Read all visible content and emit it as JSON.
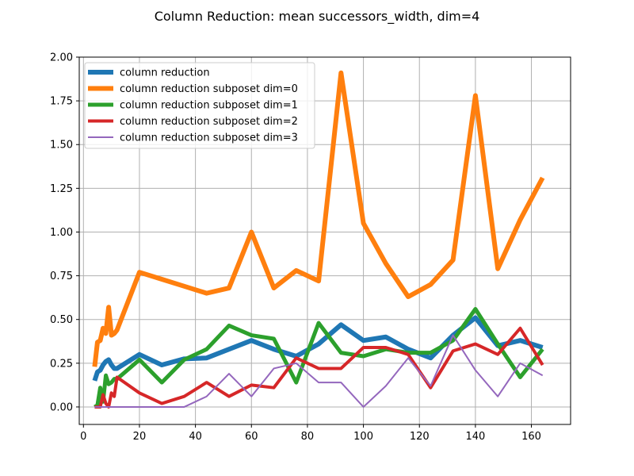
{
  "chart_data": {
    "type": "line",
    "title": "Column Reduction: mean successors_width, dim=4",
    "xlabel": "",
    "ylabel": "",
    "xlim": [
      -1.5,
      174
    ],
    "ylim": [
      -0.1,
      2.0
    ],
    "xticks": [
      0,
      20,
      40,
      60,
      80,
      100,
      120,
      140,
      160
    ],
    "yticks": [
      0.0,
      0.25,
      0.5,
      0.75,
      1.0,
      1.25,
      1.5,
      1.75,
      2.0
    ],
    "xtick_labels": [
      "0",
      "20",
      "40",
      "60",
      "80",
      "100",
      "120",
      "140",
      "160"
    ],
    "ytick_labels": [
      "0.00",
      "0.25",
      "0.50",
      "0.75",
      "1.00",
      "1.25",
      "1.50",
      "1.75",
      "2.00"
    ],
    "grid": true,
    "legend": "top-left",
    "series": [
      {
        "name": "column reduction",
        "color": "#1f77b4",
        "linewidth": 6,
        "x": [
          4,
          5,
          6,
          7,
          8,
          9,
          10,
          11,
          12,
          20,
          28,
          36,
          44,
          52,
          60,
          68,
          76,
          84,
          92,
          100,
          108,
          116,
          124,
          132,
          140,
          148,
          156,
          164
        ],
        "y": [
          0.15,
          0.2,
          0.21,
          0.24,
          0.26,
          0.27,
          0.24,
          0.22,
          0.22,
          0.3,
          0.24,
          0.275,
          0.28,
          0.33,
          0.38,
          0.33,
          0.29,
          0.36,
          0.47,
          0.38,
          0.4,
          0.33,
          0.28,
          0.41,
          0.51,
          0.35,
          0.38,
          0.34
        ]
      },
      {
        "name": "column reduction subposet dim=0",
        "color": "#ff7f0e",
        "linewidth": 6,
        "x": [
          4,
          5,
          6,
          7,
          8,
          9,
          10,
          11,
          12,
          20,
          28,
          36,
          44,
          52,
          60,
          68,
          76,
          84,
          92,
          100,
          108,
          116,
          124,
          132,
          140,
          148,
          156,
          164
        ],
        "y": [
          0.23,
          0.37,
          0.38,
          0.45,
          0.42,
          0.57,
          0.41,
          0.42,
          0.44,
          0.77,
          0.73,
          0.69,
          0.65,
          0.68,
          1.0,
          0.68,
          0.78,
          0.72,
          1.91,
          1.05,
          0.82,
          0.63,
          0.7,
          0.84,
          1.78,
          0.79,
          1.07,
          1.31
        ]
      },
      {
        "name": "column reduction subposet dim=1",
        "color": "#2ca02c",
        "linewidth": 5,
        "x": [
          4,
          5,
          6,
          7,
          8,
          9,
          10,
          11,
          12,
          20,
          28,
          36,
          44,
          52,
          60,
          68,
          76,
          84,
          92,
          100,
          108,
          116,
          124,
          132,
          140,
          148,
          156,
          164
        ],
        "y": [
          0.0,
          0.01,
          0.11,
          0.03,
          0.18,
          0.13,
          0.14,
          0.16,
          0.16,
          0.27,
          0.14,
          0.27,
          0.33,
          0.465,
          0.41,
          0.39,
          0.14,
          0.48,
          0.31,
          0.29,
          0.33,
          0.31,
          0.31,
          0.38,
          0.56,
          0.36,
          0.17,
          0.33
        ]
      },
      {
        "name": "column reduction subposet dim=2",
        "color": "#d62728",
        "linewidth": 4,
        "x": [
          4,
          5,
          6,
          7,
          8,
          9,
          10,
          11,
          12,
          20,
          28,
          36,
          44,
          52,
          60,
          68,
          76,
          84,
          92,
          100,
          108,
          116,
          124,
          132,
          140,
          148,
          156,
          164
        ],
        "y": [
          0.0,
          0.0,
          0.0,
          0.07,
          0.02,
          0.0,
          0.08,
          0.06,
          0.17,
          0.08,
          0.02,
          0.06,
          0.14,
          0.06,
          0.125,
          0.11,
          0.28,
          0.22,
          0.22,
          0.34,
          0.34,
          0.3,
          0.11,
          0.32,
          0.36,
          0.3,
          0.45,
          0.24
        ]
      },
      {
        "name": "column reduction subposet dim=3",
        "color": "#9467bd",
        "linewidth": 2,
        "x": [
          4,
          5,
          6,
          7,
          8,
          9,
          10,
          11,
          12,
          20,
          28,
          36,
          44,
          52,
          60,
          68,
          76,
          84,
          92,
          100,
          108,
          116,
          124,
          132,
          140,
          148,
          156,
          164
        ],
        "y": [
          0.0,
          0.0,
          0.0,
          0.0,
          0.0,
          0.0,
          0.0,
          0.0,
          0.0,
          0.0,
          0.0,
          0.0,
          0.06,
          0.19,
          0.06,
          0.22,
          0.25,
          0.14,
          0.14,
          0.0,
          0.12,
          0.28,
          0.12,
          0.41,
          0.21,
          0.06,
          0.25,
          0.18
        ]
      }
    ]
  }
}
